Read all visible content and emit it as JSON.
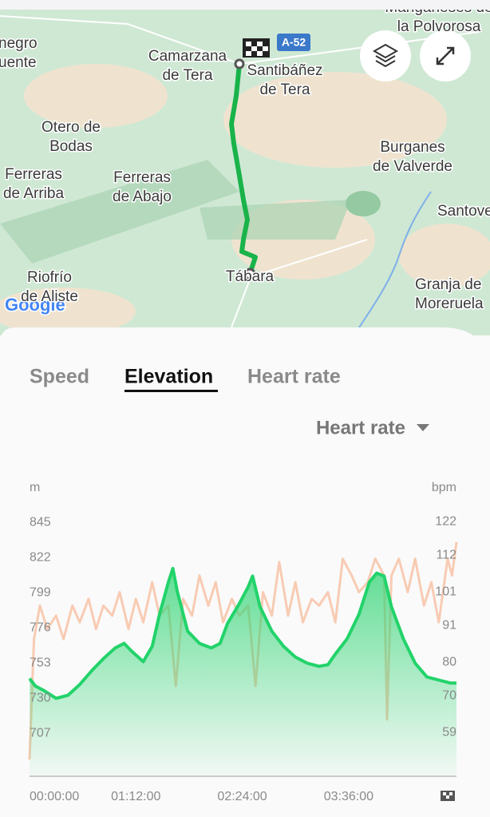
{
  "map": {
    "labels": [
      [
        "negro",
        "uente"
      ],
      [
        "Camarzana",
        "de Tera"
      ],
      [
        "Santibáñez",
        "de Tera"
      ],
      [
        "Otero de",
        "Bodas"
      ],
      [
        "Ferreras",
        "de Arriba"
      ],
      [
        "Ferreras",
        "de Abajo"
      ],
      [
        "Burganes",
        "de Valverde"
      ],
      [
        "Santove"
      ],
      [
        "Tábara"
      ],
      [
        "Riofrío",
        "de Aliste"
      ],
      [
        "Granja de",
        "Moreruela"
      ],
      [
        "Manganeses de",
        "la Polvorosa"
      ]
    ],
    "road": "A-52",
    "logo": "Google"
  },
  "tabs": [
    "Speed",
    "Elevation",
    "Heart rate"
  ],
  "active_tab": 1,
  "dropdown": "Heart rate",
  "chart_data": {
    "type": "line",
    "y_label": "m",
    "y2_label": "bpm",
    "xlim": [
      0,
      289
    ],
    "xticks": [
      {
        "value": 0,
        "label": "00:00:00"
      },
      {
        "value": 72,
        "label": "01:12:00"
      },
      {
        "value": 144,
        "label": "02:24:00"
      },
      {
        "value": 216,
        "label": "03:36:00"
      }
    ],
    "ylim": [
      679,
      863
    ],
    "yticks": [
      707,
      730,
      753,
      776,
      799,
      822,
      845
    ],
    "y2lim": [
      46,
      130
    ],
    "y2ticks": [
      59,
      70,
      80,
      91,
      101,
      112,
      122
    ],
    "series": [
      {
        "name": "Heart rate",
        "color": "#f8cbb3",
        "axis": "y2",
        "x": [
          0,
          3,
          7,
          12,
          18,
          23,
          29,
          34,
          40,
          45,
          50,
          56,
          61,
          67,
          72,
          77,
          83,
          88,
          94,
          99,
          104,
          110,
          115,
          121,
          126,
          131,
          137,
          142,
          148,
          153,
          158,
          164,
          169,
          175,
          180,
          185,
          191,
          196,
          202,
          207,
          212,
          218,
          223,
          229,
          234,
          240,
          242,
          245,
          250,
          256,
          261,
          267,
          272,
          277,
          283,
          286,
          289
        ],
        "values": [
          51,
          87,
          97,
          90,
          94,
          87,
          97,
          92,
          99,
          90,
          97,
          94,
          101,
          90,
          99,
          92,
          104,
          94,
          97,
          73,
          99,
          94,
          106,
          97,
          104,
          92,
          99,
          94,
          97,
          73,
          101,
          94,
          110,
          94,
          104,
          92,
          99,
          97,
          101,
          92,
          111,
          106,
          101,
          104,
          111,
          106,
          63,
          106,
          111,
          101,
          111,
          97,
          104,
          92,
          111,
          106,
          116
        ]
      },
      {
        "name": "Elevation",
        "color": "#22d36a",
        "x": [
          0,
          4,
          10,
          18,
          26,
          34,
          42,
          50,
          58,
          64,
          69,
          77,
          83,
          88,
          94,
          97,
          100,
          107,
          115,
          123,
          129,
          134,
          142,
          148,
          151,
          156,
          164,
          172,
          180,
          188,
          196,
          202,
          207,
          215,
          223,
          230,
          235,
          240,
          245,
          253,
          261,
          269,
          277,
          285,
          289
        ],
        "values": [
          743,
          738,
          735,
          730,
          732,
          739,
          748,
          756,
          763,
          766,
          761,
          754,
          764,
          785,
          806,
          815,
          800,
          774,
          766,
          763,
          766,
          779,
          792,
          803,
          810,
          790,
          774,
          764,
          757,
          753,
          751,
          752,
          759,
          769,
          785,
          806,
          812,
          810,
          790,
          769,
          753,
          744,
          742,
          740,
          740
        ]
      }
    ]
  }
}
